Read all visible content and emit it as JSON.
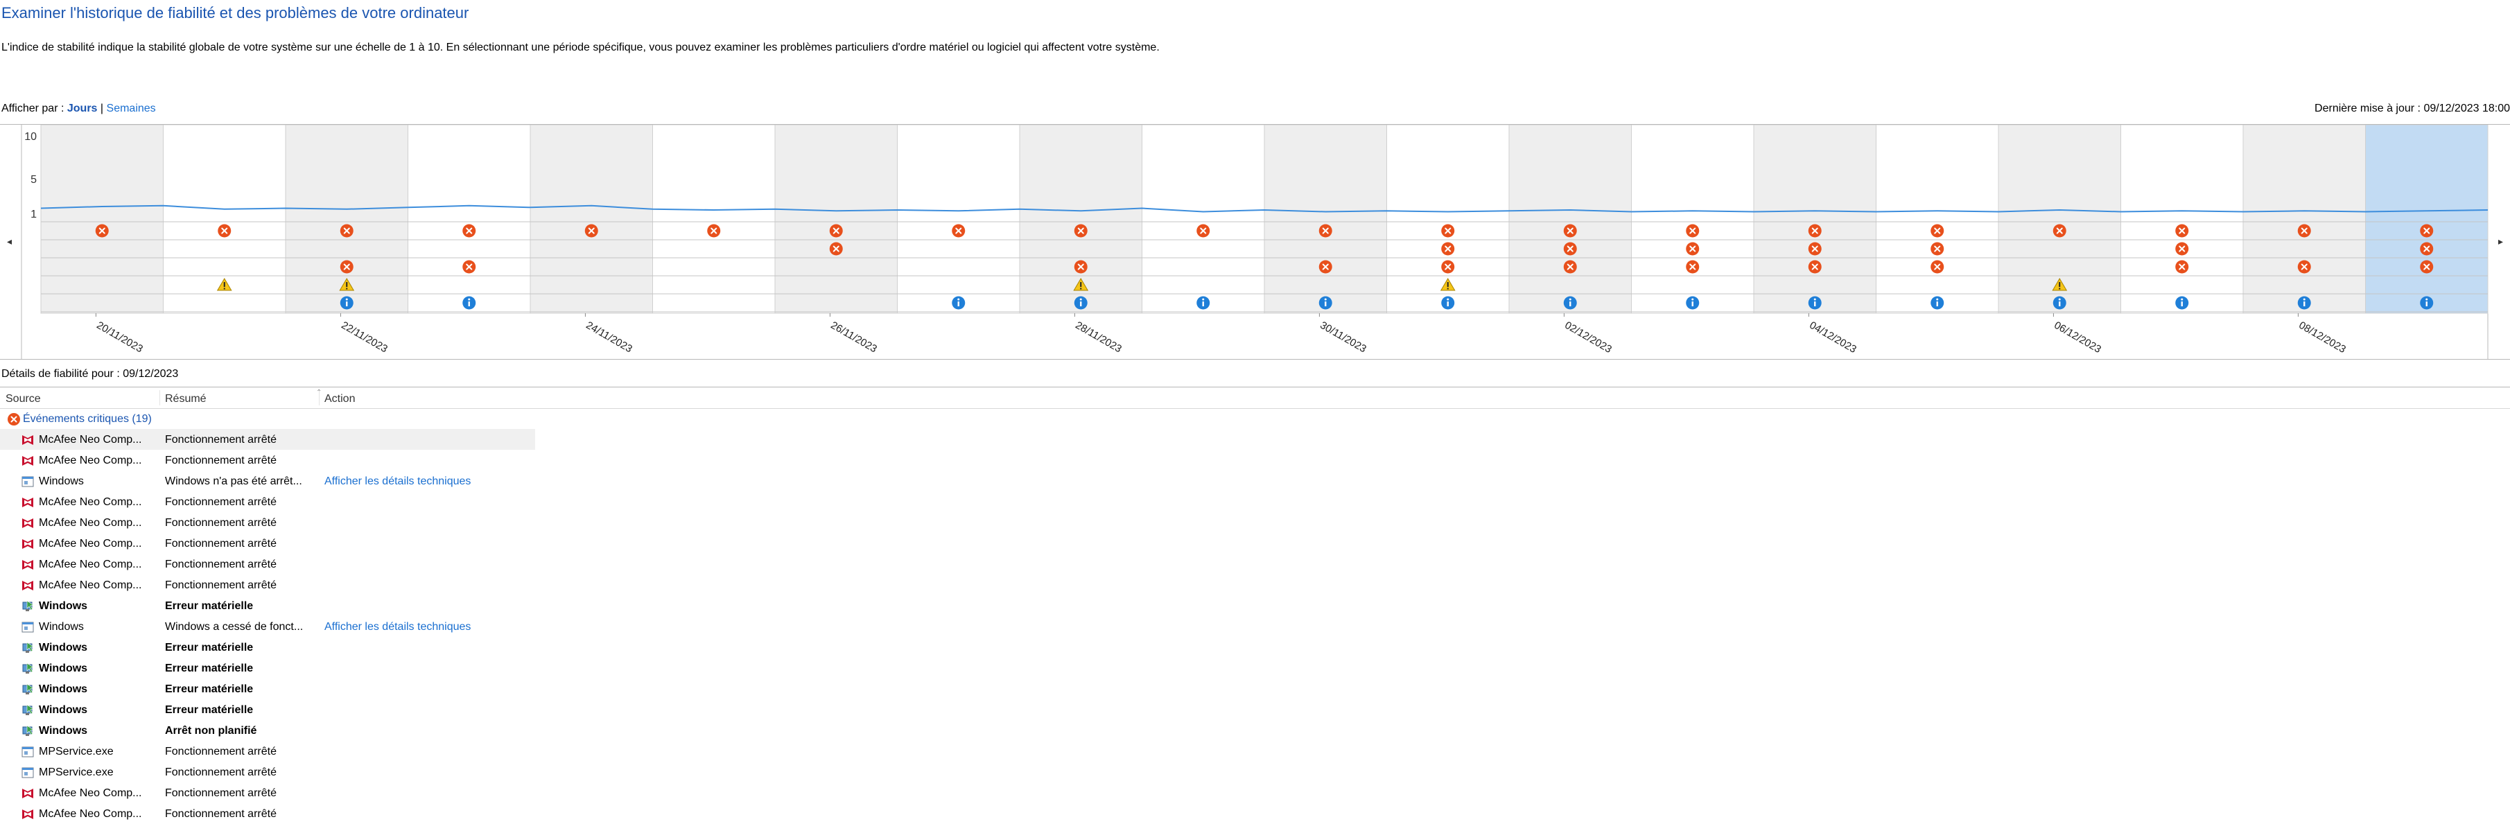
{
  "header": {
    "title": "Examiner l'historique de fiabilité et des problèmes de votre ordinateur",
    "description": "L'indice de stabilité indique la stabilité globale de votre système sur une échelle de 1 à 10. En sélectionnant une période spécifique, vous pouvez examiner les problèmes particuliers d'ordre matériel ou logiciel qui affectent votre système.",
    "view_by_label": "Afficher par :",
    "view_days": "Jours",
    "view_separator": "|",
    "view_weeks": "Semaines",
    "last_update": "Dernière mise à jour : 09/12/2023 18:00"
  },
  "nav": {
    "left": "◂",
    "right": "▸"
  },
  "chart_data": {
    "type": "line",
    "y_ticks": [
      "10",
      "5",
      "1"
    ],
    "ylim": [
      1,
      10
    ],
    "columns": 20,
    "selected_column": 19,
    "date_labels": [
      {
        "col": 0,
        "text": "20/11/2023"
      },
      {
        "col": 2,
        "text": "22/11/2023"
      },
      {
        "col": 4,
        "text": "24/11/2023"
      },
      {
        "col": 6,
        "text": "26/11/2023"
      },
      {
        "col": 8,
        "text": "28/11/2023"
      },
      {
        "col": 10,
        "text": "30/11/2023"
      },
      {
        "col": 12,
        "text": "02/12/2023"
      },
      {
        "col": 14,
        "text": "04/12/2023"
      },
      {
        "col": 16,
        "text": "06/12/2023"
      },
      {
        "col": 18,
        "text": "08/12/2023"
      }
    ],
    "stability_index": [
      1.6,
      1.8,
      1.9,
      1.5,
      1.6,
      1.5,
      1.7,
      1.9,
      1.7,
      1.9,
      1.5,
      1.4,
      1.5,
      1.3,
      1.4,
      1.3,
      1.5,
      1.3,
      1.6,
      1.2,
      1.4,
      1.2,
      1.3,
      1.2,
      1.3,
      1.4,
      1.2,
      1.3,
      1.2,
      1.3,
      1.2,
      1.3,
      1.2,
      1.4,
      1.2,
      1.3,
      1.2,
      1.3,
      1.2,
      1.3,
      1.4
    ],
    "rows": [
      {
        "name": "application-failures",
        "icon": "error",
        "cols": [
          0,
          1,
          2,
          3,
          4,
          5,
          6,
          7,
          8,
          9,
          10,
          11,
          12,
          13,
          14,
          15,
          16,
          17,
          18,
          19
        ]
      },
      {
        "name": "windows-failures",
        "icon": "error",
        "cols": [
          6,
          11,
          12,
          13,
          14,
          15,
          17,
          19
        ]
      },
      {
        "name": "miscellaneous-failures",
        "icon": "error",
        "cols": [
          2,
          3,
          8,
          10,
          11,
          12,
          13,
          14,
          15,
          17,
          18,
          19
        ]
      },
      {
        "name": "warnings",
        "icon": "warning",
        "cols": [
          1,
          2,
          8,
          11,
          16
        ]
      },
      {
        "name": "information",
        "icon": "info",
        "cols": [
          2,
          3,
          7,
          8,
          9,
          10,
          11,
          12,
          13,
          14,
          15,
          16,
          17,
          18,
          19
        ]
      }
    ],
    "colors": {
      "line": "#3c8ddc",
      "error": "#e8501c",
      "warning": "#f5c518",
      "info": "#1f7fd8",
      "shade": "#eeeeee",
      "selected": "#c2dbf3"
    }
  },
  "details": {
    "title": "Détails de fiabilité pour : 09/12/2023",
    "columns": {
      "source": "Source",
      "summary": "Résumé",
      "action": "Action"
    },
    "category": "Événements critiques (19)",
    "rows": [
      {
        "icon": "mcafee-icon",
        "source": "McAfee Neo Comp...",
        "summary": "Fonctionnement arrêté",
        "action": "",
        "bold": false,
        "selected": true
      },
      {
        "icon": "mcafee-icon",
        "source": "McAfee Neo Comp...",
        "summary": "Fonctionnement arrêté",
        "action": "",
        "bold": false,
        "selected": false
      },
      {
        "icon": "app-window-icon",
        "source": "Windows",
        "summary": "Windows n'a pas été arrêt...",
        "action": "Afficher les détails techniques",
        "bold": false,
        "selected": false
      },
      {
        "icon": "mcafee-icon",
        "source": "McAfee Neo Comp...",
        "summary": "Fonctionnement arrêté",
        "action": "",
        "bold": false,
        "selected": false
      },
      {
        "icon": "mcafee-icon",
        "source": "McAfee Neo Comp...",
        "summary": "Fonctionnement arrêté",
        "action": "",
        "bold": false,
        "selected": false
      },
      {
        "icon": "mcafee-icon",
        "source": "McAfee Neo Comp...",
        "summary": "Fonctionnement arrêté",
        "action": "",
        "bold": false,
        "selected": false
      },
      {
        "icon": "mcafee-icon",
        "source": "McAfee Neo Comp...",
        "summary": "Fonctionnement arrêté",
        "action": "",
        "bold": false,
        "selected": false
      },
      {
        "icon": "mcafee-icon",
        "source": "McAfee Neo Comp...",
        "summary": "Fonctionnement arrêté",
        "action": "",
        "bold": false,
        "selected": false
      },
      {
        "icon": "windows-hardware-icon",
        "source": "Windows",
        "summary": "Erreur matérielle",
        "action": "",
        "bold": true,
        "selected": false
      },
      {
        "icon": "app-window-icon",
        "source": "Windows",
        "summary": "Windows a cessé de fonct...",
        "action": "Afficher les détails techniques",
        "bold": false,
        "selected": false
      },
      {
        "icon": "windows-hardware-icon",
        "source": "Windows",
        "summary": "Erreur matérielle",
        "action": "",
        "bold": true,
        "selected": false
      },
      {
        "icon": "windows-hardware-icon",
        "source": "Windows",
        "summary": "Erreur matérielle",
        "action": "",
        "bold": true,
        "selected": false
      },
      {
        "icon": "windows-hardware-icon",
        "source": "Windows",
        "summary": "Erreur matérielle",
        "action": "",
        "bold": true,
        "selected": false
      },
      {
        "icon": "windows-hardware-icon",
        "source": "Windows",
        "summary": "Erreur matérielle",
        "action": "",
        "bold": true,
        "selected": false
      },
      {
        "icon": "windows-hardware-icon",
        "source": "Windows",
        "summary": "Arrêt non planifié",
        "action": "",
        "bold": true,
        "selected": false
      },
      {
        "icon": "app-window-icon",
        "source": "MPService.exe",
        "summary": "Fonctionnement arrêté",
        "action": "",
        "bold": false,
        "selected": false
      },
      {
        "icon": "app-window-icon",
        "source": "MPService.exe",
        "summary": "Fonctionnement arrêté",
        "action": "",
        "bold": false,
        "selected": false
      },
      {
        "icon": "mcafee-icon",
        "source": "McAfee Neo Comp...",
        "summary": "Fonctionnement arrêté",
        "action": "",
        "bold": false,
        "selected": false
      },
      {
        "icon": "mcafee-icon",
        "source": "McAfee Neo Comp...",
        "summary": "Fonctionnement arrêté",
        "action": "",
        "bold": false,
        "selected": false
      }
    ]
  }
}
